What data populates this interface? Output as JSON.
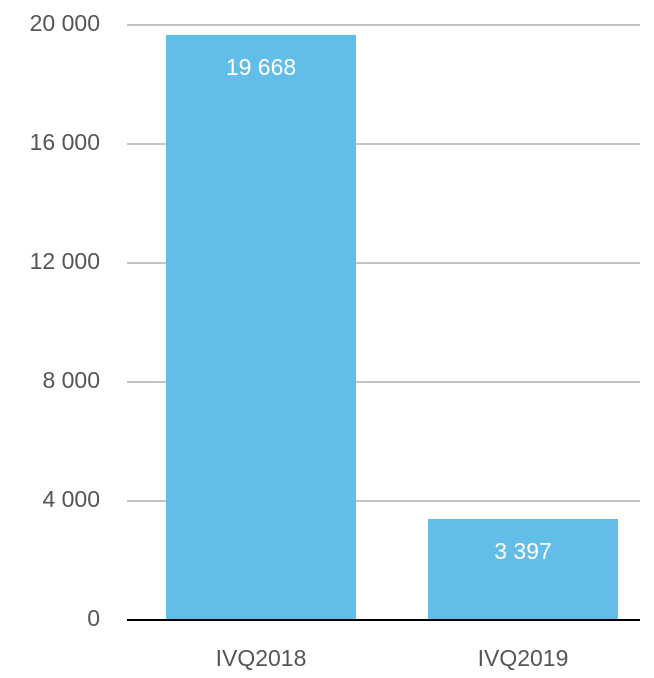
{
  "chart_data": {
    "type": "bar",
    "categories": [
      "IVQ2018",
      "IVQ2019"
    ],
    "values": [
      19668,
      3397
    ],
    "value_labels": [
      "19 668",
      "3 397"
    ],
    "color": "#63bde9",
    "ylim": [
      0,
      20000
    ],
    "yticks": [
      0,
      {
        "value": 4000,
        "label": "4 000"
      },
      {
        "value": 8000,
        "label": "8 000"
      },
      {
        "value": 12000,
        "label": "12 000"
      },
      {
        "value": 16000,
        "label": "16 000"
      },
      {
        "value": 20000,
        "label": "20 000"
      }
    ],
    "grid": true
  }
}
